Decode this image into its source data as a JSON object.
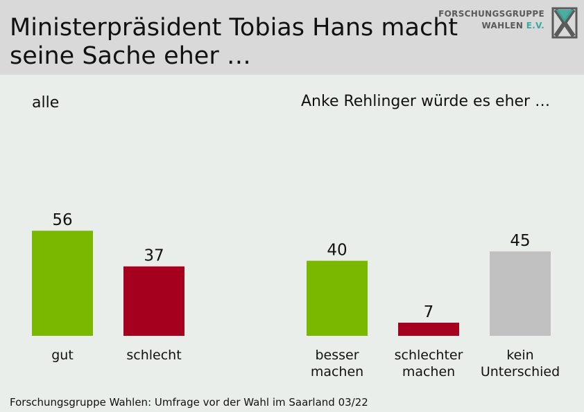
{
  "header": {
    "title_lines": [
      "Ministerpräsident Tobias Hans macht",
      "seine Sache eher …"
    ]
  },
  "logo": {
    "line1": "FORSCHUNGSGRUPPE",
    "line2_main": "WAHLEN",
    "line2_accent": "E.V."
  },
  "colors": {
    "green": "#7ab800",
    "red": "#a5001e",
    "grey": "#c1c1c1",
    "background": "#e9eeeb",
    "header_bg": "#d9d9d9",
    "logo_accent": "#3aa89a"
  },
  "chart_data": [
    {
      "type": "bar",
      "title": "alle",
      "categories": [
        "gut",
        "schlecht"
      ],
      "values": [
        56,
        37
      ],
      "colors": [
        "#7ab800",
        "#a5001e"
      ]
    },
    {
      "type": "bar",
      "title": "Anke Rehlinger würde es eher …",
      "categories": [
        "besser machen",
        "schlechter machen",
        "kein Unterschied"
      ],
      "category_lines": [
        [
          "besser",
          "machen"
        ],
        [
          "schlechter",
          "machen"
        ],
        [
          "kein",
          "Unterschied"
        ]
      ],
      "values": [
        40,
        7,
        45
      ],
      "colors": [
        "#7ab800",
        "#a5001e",
        "#c1c1c1"
      ]
    }
  ],
  "footer": {
    "source": "Forschungsgruppe Wahlen: Umfrage vor der Wahl im Saarland 03/22"
  }
}
